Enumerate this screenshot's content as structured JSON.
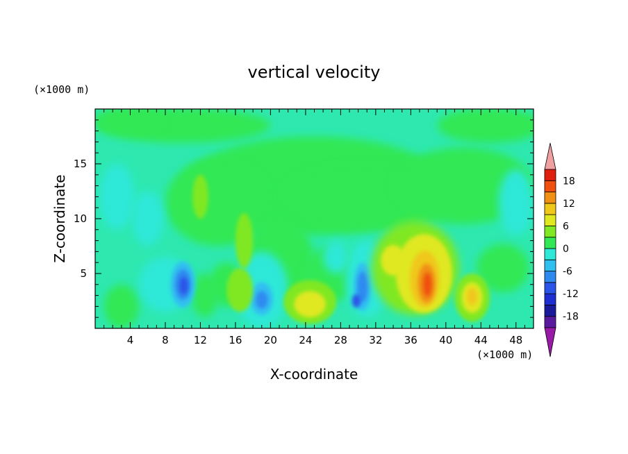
{
  "chart_data": {
    "type": "heatmap",
    "title": "vertical velocity",
    "xlabel": "X-coordinate",
    "ylabel": "Z-coordinate",
    "x_unit": "(×1000 m)",
    "y_unit": "(×1000 m)",
    "xlim": [
      0,
      50
    ],
    "ylim": [
      0,
      20
    ],
    "x_ticks": [
      4,
      8,
      12,
      16,
      20,
      24,
      28,
      32,
      36,
      40,
      44,
      48
    ],
    "y_ticks": [
      5,
      10,
      15
    ],
    "colorbar": {
      "levels": [
        -21,
        -18,
        -15,
        -12,
        -9,
        -6,
        -3,
        0,
        3,
        6,
        9,
        12,
        15,
        18,
        21
      ],
      "tick_labels": [
        18,
        12,
        6,
        0,
        -6,
        -12,
        -18
      ],
      "colors": [
        "#5a1aa0",
        "#1a1a9a",
        "#1f2ed0",
        "#2a55e8",
        "#2f8af0",
        "#30c0f0",
        "#2ee8d8",
        "#33e855",
        "#80e824",
        "#e0e820",
        "#f0c81a",
        "#f09014",
        "#f0500f",
        "#e0200f"
      ],
      "under_color": "#9a1aa8",
      "over_color": "#f0a0a0"
    },
    "features": [
      {
        "x": 10,
        "z": 3.8,
        "value": -14,
        "note": "downdraft"
      },
      {
        "x": 19,
        "z": 2.6,
        "value": -11,
        "note": "downdraft"
      },
      {
        "x": 30.5,
        "z": 3.5,
        "value": -12,
        "note": "downdraft"
      },
      {
        "x": 24.5,
        "z": 2.2,
        "value": 8,
        "note": "updraft"
      },
      {
        "x": 37.5,
        "z": 4.2,
        "value": 16,
        "note": "updraft"
      },
      {
        "x": 43,
        "z": 2.7,
        "value": 10,
        "note": "updraft"
      }
    ]
  }
}
